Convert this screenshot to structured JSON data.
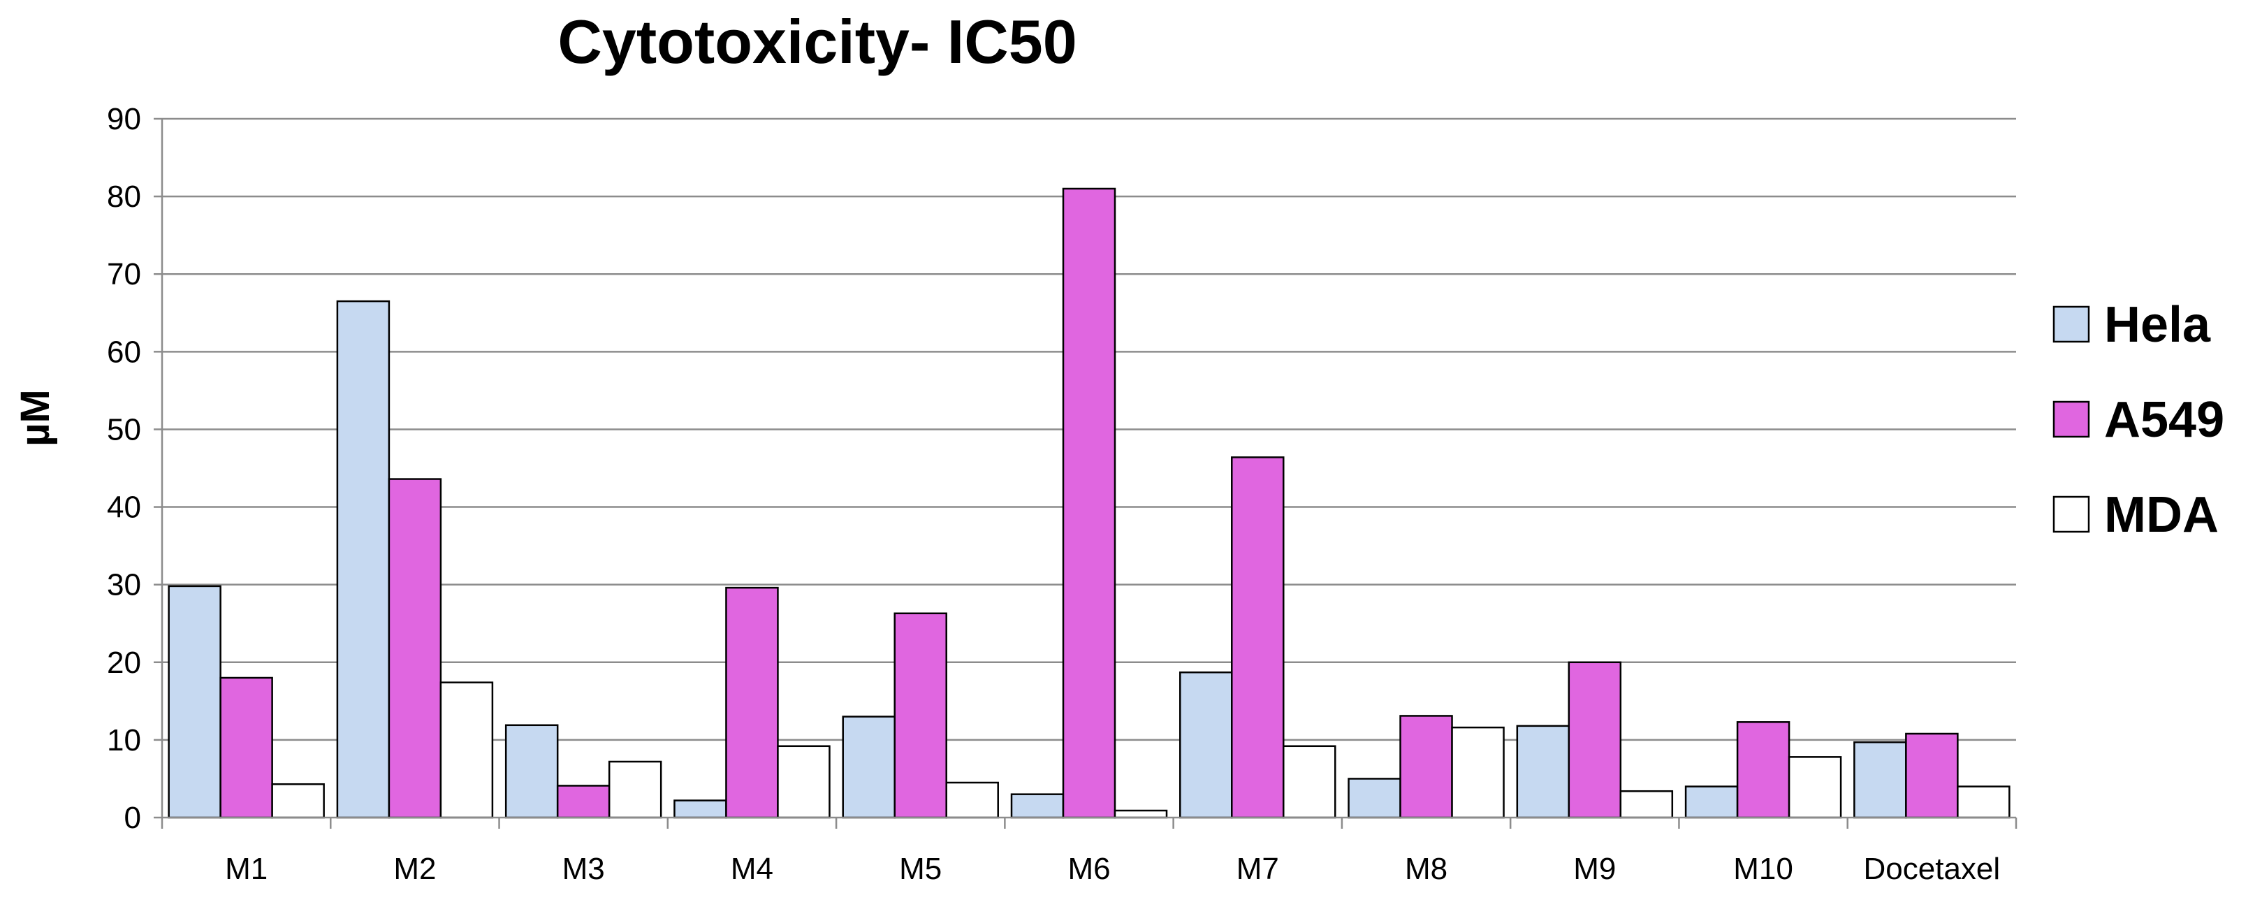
{
  "chart_data": {
    "type": "bar",
    "title": "Cytotoxicity- IC50",
    "xlabel": "",
    "ylabel": "µM",
    "ylim": [
      0,
      90
    ],
    "yticks": [
      0,
      10,
      20,
      30,
      40,
      50,
      60,
      70,
      80,
      90
    ],
    "grid": true,
    "legend_position": "right",
    "categories": [
      "M1",
      "M2",
      "M3",
      "M4",
      "M5",
      "M6",
      "M7",
      "M8",
      "M9",
      "M10",
      "Docetaxel"
    ],
    "series": [
      {
        "name": "Hela",
        "color": "#c6d9f1",
        "values": [
          29.8,
          66.5,
          11.9,
          2.2,
          13.0,
          3.0,
          18.7,
          5.0,
          11.8,
          4.0,
          9.7
        ]
      },
      {
        "name": "A549",
        "color": "#e066e0",
        "values": [
          18.0,
          43.6,
          4.1,
          29.6,
          26.3,
          81.0,
          46.4,
          13.1,
          20.0,
          12.3,
          10.8
        ]
      },
      {
        "name": "MDA",
        "color": "#ffffff",
        "values": [
          4.3,
          17.4,
          7.2,
          9.2,
          4.5,
          0.9,
          9.2,
          11.6,
          3.4,
          7.8,
          4.0
        ]
      }
    ]
  }
}
